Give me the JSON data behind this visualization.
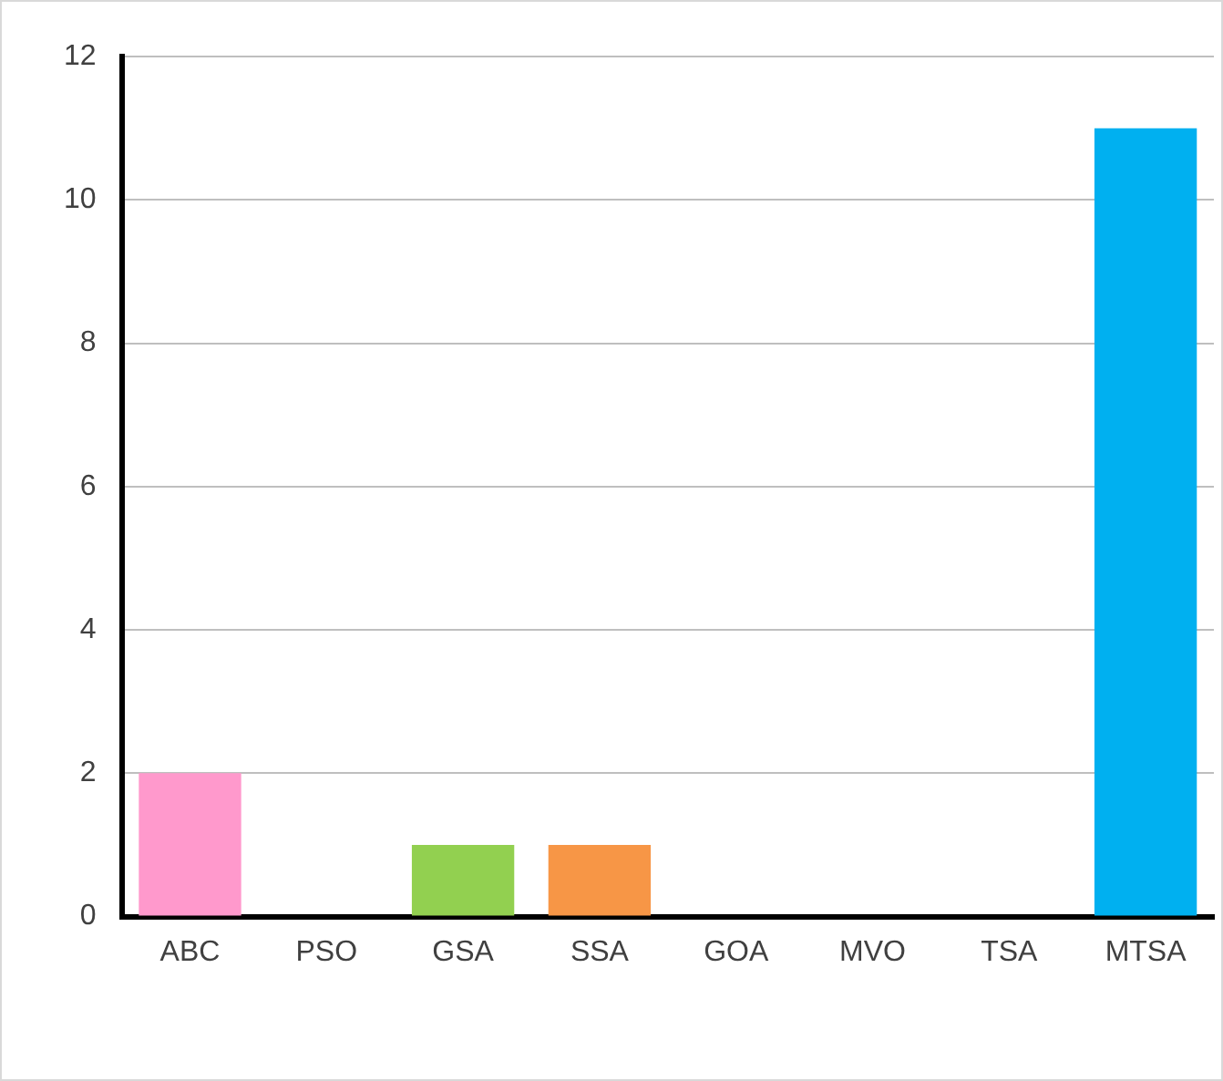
{
  "chart_data": {
    "type": "bar",
    "categories": [
      "ABC",
      "PSO",
      "GSA",
      "SSA",
      "GOA",
      "MVO",
      "TSA",
      "MTSA"
    ],
    "values": [
      2,
      0,
      1,
      1,
      0,
      0,
      0,
      11
    ],
    "colors": [
      "#ff99cc",
      "#a5a5a5",
      "#92d050",
      "#f79646",
      "#a5a5a5",
      "#a5a5a5",
      "#a5a5a5",
      "#00b0f0"
    ],
    "ylim": [
      0,
      12
    ],
    "yticks": [
      0,
      2,
      4,
      6,
      8,
      10,
      12
    ],
    "grid": "y",
    "legend": false
  }
}
